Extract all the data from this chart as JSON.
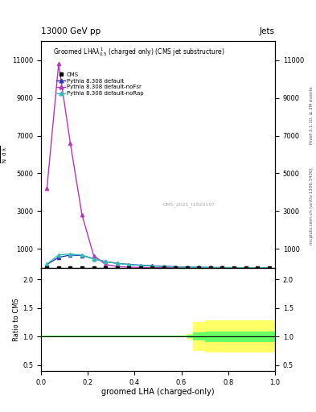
{
  "title_top": "13000 GeV pp",
  "title_right": "Jets",
  "plot_title": "Groomed LHA$\\lambda^{1}_{0.5}$ (charged only) (CMS jet substructure)",
  "xlabel": "groomed LHA (charged-only)",
  "ylabel_ratio": "Ratio to CMS",
  "watermark": "CMS_2021_I1920187",
  "rivet_label": "Rivet 3.1.10, ≥ 3M events",
  "mcplots_label": "mcplots.cern.ch [arXiv:1306.3436]",
  "x_data": [
    0.025,
    0.075,
    0.125,
    0.175,
    0.225,
    0.275,
    0.325,
    0.375,
    0.425,
    0.475,
    0.525,
    0.575,
    0.625,
    0.675,
    0.725,
    0.775,
    0.825,
    0.875,
    0.925,
    0.975
  ],
  "pythia_default": [
    180,
    550,
    680,
    650,
    480,
    330,
    240,
    180,
    140,
    110,
    80,
    55,
    38,
    28,
    18,
    13,
    9,
    4,
    2,
    1
  ],
  "pythia_noFsr": [
    4200,
    10800,
    6600,
    2800,
    650,
    180,
    70,
    35,
    18,
    9,
    4,
    2,
    1.5,
    0.8,
    0.4,
    0.2,
    0.1,
    0.05,
    0.02,
    0.01
  ],
  "pythia_noRap": [
    200,
    680,
    730,
    670,
    480,
    330,
    230,
    170,
    125,
    95,
    65,
    45,
    32,
    22,
    14,
    10,
    7,
    3,
    2,
    1
  ],
  "color_default": "#3333bb",
  "color_noFsr": "#bb33bb",
  "color_noRap": "#33bbbb",
  "color_cms": "#000000",
  "ylim_main": [
    0,
    12000
  ],
  "yticks_main": [
    1000,
    3000,
    5000,
    7000,
    9000,
    11000
  ],
  "ylim_ratio": [
    0.4,
    2.2
  ],
  "yticks_ratio": [
    0.5,
    1.0,
    1.5,
    2.0
  ],
  "xlim": [
    0,
    1.0
  ],
  "ratio_x_edges": [
    0.0,
    0.05,
    0.1,
    0.15,
    0.2,
    0.25,
    0.3,
    0.35,
    0.4,
    0.45,
    0.5,
    0.55,
    0.6,
    0.625,
    0.65,
    0.7,
    0.75,
    0.8,
    0.85,
    0.9,
    0.95,
    1.0
  ],
  "ratio_green_low": [
    0.985,
    0.985,
    0.985,
    0.985,
    0.985,
    0.985,
    0.985,
    0.985,
    0.985,
    0.985,
    0.985,
    0.985,
    0.985,
    0.97,
    0.93,
    0.91,
    0.91,
    0.91,
    0.91,
    0.91,
    0.91,
    0.91
  ],
  "ratio_green_high": [
    1.015,
    1.015,
    1.015,
    1.015,
    1.015,
    1.015,
    1.015,
    1.015,
    1.015,
    1.015,
    1.015,
    1.015,
    1.015,
    1.03,
    1.07,
    1.09,
    1.09,
    1.09,
    1.09,
    1.09,
    1.09,
    1.09
  ],
  "ratio_yellow_low": [
    0.985,
    0.985,
    0.985,
    0.985,
    0.985,
    0.985,
    0.985,
    0.985,
    0.985,
    0.985,
    0.985,
    0.985,
    0.985,
    0.95,
    0.75,
    0.72,
    0.72,
    0.72,
    0.72,
    0.72,
    0.72,
    0.72
  ],
  "ratio_yellow_high": [
    1.015,
    1.015,
    1.015,
    1.015,
    1.015,
    1.015,
    1.015,
    1.015,
    1.015,
    1.015,
    1.015,
    1.015,
    1.015,
    1.05,
    1.25,
    1.28,
    1.28,
    1.28,
    1.28,
    1.28,
    1.28,
    1.28
  ]
}
